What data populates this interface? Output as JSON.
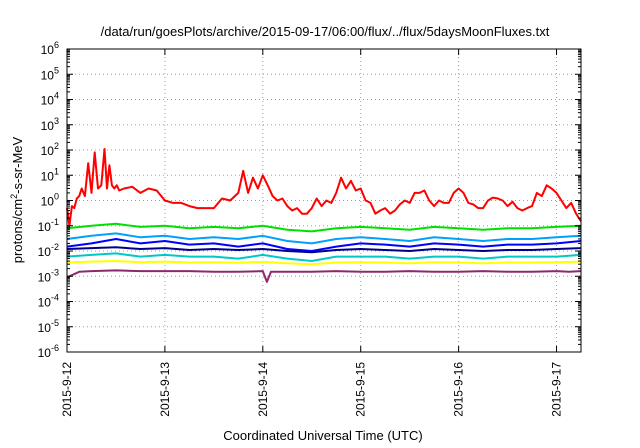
{
  "chart_data": {
    "type": "line",
    "title": "/data/run/goesPlots/archive/2015-09-17/06:00/flux/../flux/5daysMoonFluxes.txt",
    "xlabel": "Coordinated Universal Time (UTC)",
    "ylabel_main": "protons/cm",
    "ylabel_sup": "2",
    "ylabel_rest": "-s-sr-MeV",
    "x_scale": "time",
    "y_scale": "log",
    "xlim": [
      "2015-09-12T00:00",
      "2015-09-17T06:00"
    ],
    "ylim": [
      1e-06,
      1000000.0
    ],
    "grid": true,
    "legend": "none",
    "x_ticks": [
      {
        "value": "2015-09-12T00:00",
        "label": "2015-9-12"
      },
      {
        "value": "2015-09-13T00:00",
        "label": "2015-9-13"
      },
      {
        "value": "2015-09-14T00:00",
        "label": "2015-9-14"
      },
      {
        "value": "2015-09-15T00:00",
        "label": "2015-9-15"
      },
      {
        "value": "2015-09-16T00:00",
        "label": "2015-9-16"
      },
      {
        "value": "2015-09-17T00:00",
        "label": "2015-9-17"
      }
    ],
    "y_ticks": [
      {
        "value": 1e-06,
        "base": "10",
        "exp": "-6"
      },
      {
        "value": 1e-05,
        "base": "10",
        "exp": "-5"
      },
      {
        "value": 0.0001,
        "base": "10",
        "exp": "-4"
      },
      {
        "value": 0.001,
        "base": "10",
        "exp": "-3"
      },
      {
        "value": 0.01,
        "base": "10",
        "exp": "-2"
      },
      {
        "value": 0.1,
        "base": "10",
        "exp": "-1"
      },
      {
        "value": 1.0,
        "base": "10",
        "exp": "0"
      },
      {
        "value": 10.0,
        "base": "10",
        "exp": "1"
      },
      {
        "value": 100.0,
        "base": "10",
        "exp": "2"
      },
      {
        "value": 1000.0,
        "base": "10",
        "exp": "3"
      },
      {
        "value": 10000.0,
        "base": "10",
        "exp": "4"
      },
      {
        "value": 100000.0,
        "base": "10",
        "exp": "5"
      },
      {
        "value": 1000000.0,
        "base": "10",
        "exp": "6"
      }
    ],
    "series": [
      {
        "color": "#ff0000",
        "x": [
          "2015-09-12T00:00",
          "2015-09-12T00:36",
          "2015-09-12T01:12",
          "2015-09-12T01:48",
          "2015-09-12T02:24",
          "2015-09-12T03:00",
          "2015-09-12T03:36",
          "2015-09-12T04:24",
          "2015-09-12T05:12",
          "2015-09-12T06:00",
          "2015-09-12T06:48",
          "2015-09-12T07:36",
          "2015-09-12T08:24",
          "2015-09-12T09:12",
          "2015-09-12T09:48",
          "2015-09-12T10:24",
          "2015-09-12T11:00",
          "2015-09-12T11:36",
          "2015-09-12T12:12",
          "2015-09-12T12:48",
          "2015-09-12T14:00",
          "2015-09-12T16:00",
          "2015-09-12T18:00",
          "2015-09-12T20:00",
          "2015-09-12T22:00",
          "2015-09-13T00:00",
          "2015-09-13T02:00",
          "2015-09-13T04:00",
          "2015-09-13T06:00",
          "2015-09-13T08:00",
          "2015-09-13T10:00",
          "2015-09-13T12:00",
          "2015-09-13T14:00",
          "2015-09-13T16:00",
          "2015-09-13T18:00",
          "2015-09-13T19:12",
          "2015-09-13T20:24",
          "2015-09-13T21:36",
          "2015-09-13T22:48",
          "2015-09-14T00:00",
          "2015-09-14T01:12",
          "2015-09-14T02:24",
          "2015-09-14T03:36",
          "2015-09-14T04:48",
          "2015-09-14T06:00",
          "2015-09-14T07:12",
          "2015-09-14T08:24",
          "2015-09-14T09:36",
          "2015-09-14T10:48",
          "2015-09-14T12:00",
          "2015-09-14T13:12",
          "2015-09-14T14:24",
          "2015-09-14T15:36",
          "2015-09-14T16:48",
          "2015-09-14T18:00",
          "2015-09-14T19:12",
          "2015-09-14T20:24",
          "2015-09-14T21:36",
          "2015-09-14T22:48",
          "2015-09-15T00:00",
          "2015-09-15T01:12",
          "2015-09-15T02:24",
          "2015-09-15T03:36",
          "2015-09-15T04:48",
          "2015-09-15T06:00",
          "2015-09-15T07:12",
          "2015-09-15T08:24",
          "2015-09-15T09:36",
          "2015-09-15T10:48",
          "2015-09-15T12:00",
          "2015-09-15T13:12",
          "2015-09-15T14:24",
          "2015-09-15T15:36",
          "2015-09-15T16:48",
          "2015-09-15T18:00",
          "2015-09-15T19:12",
          "2015-09-15T20:24",
          "2015-09-15T21:36",
          "2015-09-15T22:48",
          "2015-09-16T00:00",
          "2015-09-16T01:12",
          "2015-09-16T02:24",
          "2015-09-16T03:36",
          "2015-09-16T04:48",
          "2015-09-16T06:00",
          "2015-09-16T07:12",
          "2015-09-16T08:24",
          "2015-09-16T09:36",
          "2015-09-16T10:48",
          "2015-09-16T12:00",
          "2015-09-16T13:12",
          "2015-09-16T14:24",
          "2015-09-16T15:36",
          "2015-09-16T16:48",
          "2015-09-16T18:00",
          "2015-09-16T19:12",
          "2015-09-16T20:24",
          "2015-09-16T21:36",
          "2015-09-16T22:48",
          "2015-09-17T00:00",
          "2015-09-17T01:12",
          "2015-09-17T02:24",
          "2015-09-17T03:36",
          "2015-09-17T04:48",
          "2015-09-17T06:00"
        ],
        "y": [
          0.5,
          0.1,
          0.6,
          0.5,
          1.2,
          1.5,
          3,
          1.5,
          30,
          2,
          80,
          3,
          4,
          110,
          3,
          25,
          4,
          3,
          4,
          2.5,
          3,
          3.5,
          2,
          3,
          2.5,
          1,
          0.8,
          0.8,
          0.6,
          0.5,
          0.5,
          0.5,
          1.2,
          1,
          2,
          15,
          2,
          8,
          3,
          10,
          4,
          1.5,
          1,
          1.2,
          0.6,
          0.4,
          0.5,
          0.3,
          0.3,
          0.5,
          1.2,
          0.6,
          1,
          0.8,
          2,
          8,
          3,
          6,
          2.5,
          3,
          1,
          0.8,
          0.3,
          0.4,
          0.5,
          0.3,
          0.4,
          0.7,
          1,
          0.8,
          2,
          2,
          2.5,
          1,
          0.6,
          1,
          0.8,
          0.8,
          2,
          3,
          2,
          0.8,
          0.7,
          0.5,
          0.5,
          1,
          1.3,
          1.2,
          1,
          0.6,
          0.9,
          0.5,
          0.4,
          0.5,
          0.6,
          2,
          1.5,
          4,
          3,
          2,
          1,
          0.5,
          0.8,
          0.3,
          0.15
        ]
      },
      {
        "color": "#00e000",
        "x": [
          "2015-09-12T00:00",
          "2015-09-12T06:00",
          "2015-09-12T12:00",
          "2015-09-12T18:00",
          "2015-09-13T00:00",
          "2015-09-13T06:00",
          "2015-09-13T12:00",
          "2015-09-13T18:00",
          "2015-09-14T00:00",
          "2015-09-14T06:00",
          "2015-09-14T12:00",
          "2015-09-14T18:00",
          "2015-09-15T00:00",
          "2015-09-15T06:00",
          "2015-09-15T12:00",
          "2015-09-15T18:00",
          "2015-09-16T00:00",
          "2015-09-16T06:00",
          "2015-09-16T12:00",
          "2015-09-16T18:00",
          "2015-09-17T00:00",
          "2015-09-17T06:00"
        ],
        "y": [
          0.08,
          0.1,
          0.12,
          0.09,
          0.1,
          0.08,
          0.09,
          0.08,
          0.1,
          0.07,
          0.06,
          0.08,
          0.09,
          0.08,
          0.07,
          0.09,
          0.08,
          0.07,
          0.08,
          0.08,
          0.09,
          0.1
        ]
      },
      {
        "color": "#00a0ff",
        "x": [
          "2015-09-12T00:00",
          "2015-09-12T06:00",
          "2015-09-12T12:00",
          "2015-09-12T18:00",
          "2015-09-13T00:00",
          "2015-09-13T06:00",
          "2015-09-13T12:00",
          "2015-09-13T18:00",
          "2015-09-14T00:00",
          "2015-09-14T06:00",
          "2015-09-14T12:00",
          "2015-09-14T18:00",
          "2015-09-15T00:00",
          "2015-09-15T06:00",
          "2015-09-15T12:00",
          "2015-09-15T18:00",
          "2015-09-16T00:00",
          "2015-09-16T06:00",
          "2015-09-16T12:00",
          "2015-09-16T18:00",
          "2015-09-17T00:00",
          "2015-09-17T06:00"
        ],
        "y": [
          0.03,
          0.04,
          0.05,
          0.035,
          0.04,
          0.03,
          0.035,
          0.03,
          0.04,
          0.025,
          0.02,
          0.03,
          0.035,
          0.03,
          0.025,
          0.035,
          0.03,
          0.025,
          0.03,
          0.03,
          0.035,
          0.04
        ]
      },
      {
        "color": "#0000ff",
        "x": [
          "2015-09-12T00:00",
          "2015-09-12T06:00",
          "2015-09-12T12:00",
          "2015-09-12T18:00",
          "2015-09-13T00:00",
          "2015-09-13T06:00",
          "2015-09-13T12:00",
          "2015-09-13T18:00",
          "2015-09-14T00:00",
          "2015-09-14T06:00",
          "2015-09-14T12:00",
          "2015-09-14T18:00",
          "2015-09-15T00:00",
          "2015-09-15T06:00",
          "2015-09-15T12:00",
          "2015-09-15T18:00",
          "2015-09-16T00:00",
          "2015-09-16T06:00",
          "2015-09-16T12:00",
          "2015-09-16T18:00",
          "2015-09-17T00:00",
          "2015-09-17T06:00"
        ],
        "y": [
          0.015,
          0.02,
          0.03,
          0.02,
          0.025,
          0.018,
          0.02,
          0.015,
          0.02,
          0.012,
          0.01,
          0.015,
          0.02,
          0.018,
          0.015,
          0.02,
          0.018,
          0.015,
          0.018,
          0.018,
          0.02,
          0.025
        ]
      },
      {
        "color": "#00008b",
        "x": [
          "2015-09-12T00:00",
          "2015-09-12T06:00",
          "2015-09-12T12:00",
          "2015-09-12T18:00",
          "2015-09-13T00:00",
          "2015-09-13T06:00",
          "2015-09-13T12:00",
          "2015-09-13T18:00",
          "2015-09-14T00:00",
          "2015-09-14T06:00",
          "2015-09-14T12:00",
          "2015-09-14T18:00",
          "2015-09-15T00:00",
          "2015-09-15T06:00",
          "2015-09-15T12:00",
          "2015-09-15T18:00",
          "2015-09-16T00:00",
          "2015-09-16T06:00",
          "2015-09-16T12:00",
          "2015-09-16T18:00",
          "2015-09-17T00:00",
          "2015-09-17T06:00"
        ],
        "y": [
          0.012,
          0.013,
          0.014,
          0.012,
          0.013,
          0.011,
          0.012,
          0.011,
          0.012,
          0.01,
          0.009,
          0.011,
          0.012,
          0.011,
          0.01,
          0.012,
          0.011,
          0.01,
          0.011,
          0.011,
          0.012,
          0.013
        ]
      },
      {
        "color": "#00c8c8",
        "x": [
          "2015-09-12T00:00",
          "2015-09-12T06:00",
          "2015-09-12T12:00",
          "2015-09-12T18:00",
          "2015-09-13T00:00",
          "2015-09-13T06:00",
          "2015-09-13T12:00",
          "2015-09-13T18:00",
          "2015-09-14T00:00",
          "2015-09-14T06:00",
          "2015-09-14T12:00",
          "2015-09-14T18:00",
          "2015-09-15T00:00",
          "2015-09-15T06:00",
          "2015-09-15T12:00",
          "2015-09-15T18:00",
          "2015-09-16T00:00",
          "2015-09-16T06:00",
          "2015-09-16T12:00",
          "2015-09-16T18:00",
          "2015-09-17T00:00",
          "2015-09-17T06:00"
        ],
        "y": [
          0.006,
          0.007,
          0.008,
          0.006,
          0.007,
          0.006,
          0.006,
          0.005,
          0.007,
          0.005,
          0.004,
          0.006,
          0.006,
          0.006,
          0.005,
          0.006,
          0.006,
          0.005,
          0.006,
          0.006,
          0.006,
          0.007
        ]
      },
      {
        "color": "#ffff00",
        "x": [
          "2015-09-12T00:00",
          "2015-09-12T06:00",
          "2015-09-12T12:00",
          "2015-09-12T18:00",
          "2015-09-13T00:00",
          "2015-09-13T06:00",
          "2015-09-13T12:00",
          "2015-09-13T18:00",
          "2015-09-14T00:00",
          "2015-09-14T06:00",
          "2015-09-14T12:00",
          "2015-09-14T18:00",
          "2015-09-15T00:00",
          "2015-09-15T06:00",
          "2015-09-15T12:00",
          "2015-09-15T18:00",
          "2015-09-16T00:00",
          "2015-09-16T06:00",
          "2015-09-16T12:00",
          "2015-09-16T18:00",
          "2015-09-17T00:00",
          "2015-09-17T06:00"
        ],
        "y": [
          0.0035,
          0.0038,
          0.004,
          0.0036,
          0.0038,
          0.0035,
          0.0036,
          0.0034,
          0.0037,
          0.0033,
          0.003,
          0.0035,
          0.0036,
          0.0035,
          0.0033,
          0.0036,
          0.0035,
          0.0033,
          0.0035,
          0.0035,
          0.0036,
          0.0038
        ]
      },
      {
        "color": "#8b2a6b",
        "x": [
          "2015-09-12T00:00",
          "2015-09-12T03:00",
          "2015-09-12T06:00",
          "2015-09-12T12:00",
          "2015-09-12T18:00",
          "2015-09-13T00:00",
          "2015-09-13T06:00",
          "2015-09-13T12:00",
          "2015-09-13T18:00",
          "2015-09-14T00:00",
          "2015-09-14T01:00",
          "2015-09-14T02:00",
          "2015-09-14T06:00",
          "2015-09-14T12:00",
          "2015-09-14T18:00",
          "2015-09-15T00:00",
          "2015-09-15T06:00",
          "2015-09-15T12:00",
          "2015-09-15T18:00",
          "2015-09-16T00:00",
          "2015-09-16T06:00",
          "2015-09-16T12:00",
          "2015-09-16T18:00",
          "2015-09-17T00:00",
          "2015-09-17T03:00",
          "2015-09-17T06:00"
        ],
        "y": [
          0.0009,
          0.0015,
          0.0016,
          0.0017,
          0.0016,
          0.0016,
          0.0016,
          0.0015,
          0.0015,
          0.0016,
          0.0006,
          0.0015,
          0.0015,
          0.0015,
          0.0016,
          0.0015,
          0.0015,
          0.0016,
          0.0015,
          0.0015,
          0.0016,
          0.0015,
          0.0015,
          0.0016,
          0.0015,
          0.0016
        ]
      }
    ]
  }
}
